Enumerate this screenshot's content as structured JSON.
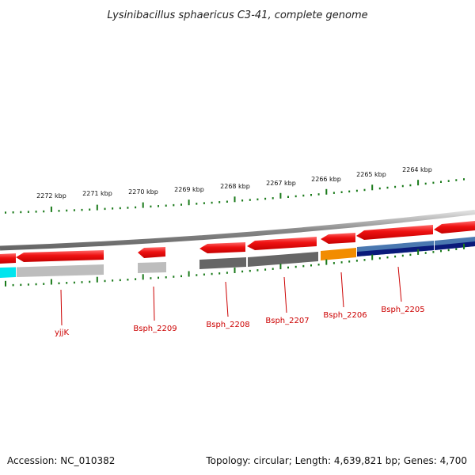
{
  "title": "Lysinibacillus sphaericus C3-41, complete genome",
  "footer": {
    "accession": "Accession: NC_010382",
    "summary": "Topology: circular; Length: 4,639,821 bp; Genes: 4,700"
  },
  "scale": {
    "tick_labels": [
      "2272 kbp",
      "2271 kbp",
      "2270 kbp",
      "2269 kbp",
      "2268 kbp",
      "2267 kbp",
      "2266 kbp",
      "2265 kbp",
      "2264 kbp"
    ]
  },
  "genes": [
    {
      "label": "yjjK",
      "color": "#cc0000"
    },
    {
      "label": "Bsph_2209",
      "color": "#cc0000"
    },
    {
      "label": "Bsph_2208",
      "color": "#cc0000"
    },
    {
      "label": "Bsph_2207",
      "color": "#cc0000"
    },
    {
      "label": "Bsph_2206",
      "color": "#cc0000"
    },
    {
      "label": "Bsph_2205",
      "color": "#cc0000"
    }
  ],
  "colors": {
    "cds": "#ee1111",
    "backbone": "#888888",
    "ticks": "#1a7a1a",
    "gene_label": "#cc0000",
    "cyan": "#00e5ee",
    "light_gray": "#bdbdbd",
    "dark_gray": "#666666",
    "orange": "#f28c00",
    "navy": "#0a1a7a",
    "steel_blue": "#4a78b0"
  }
}
